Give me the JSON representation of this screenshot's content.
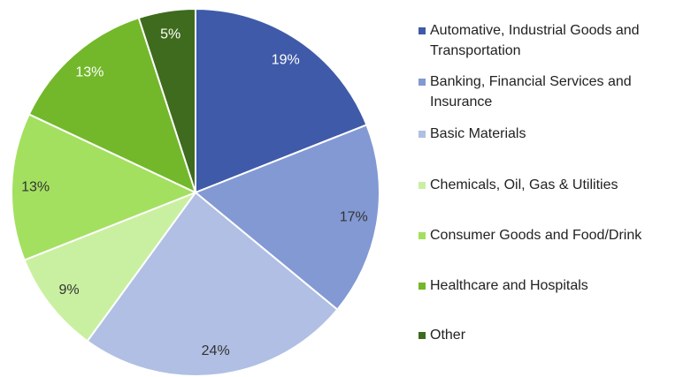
{
  "chart_data": {
    "type": "pie",
    "categories": [
      "Automative, Industrial Goods and Transportation",
      "Banking, Financial Services and Insurance",
      "Basic Materials",
      "Chemicals, Oil, Gas & Utilities",
      "Consumer Goods and Food/Drink",
      "Healthcare and Hospitals",
      "Other"
    ],
    "values": [
      19,
      17,
      24,
      9,
      13,
      13,
      5
    ],
    "value_labels": [
      "19%",
      "17%",
      "24%",
      "9%",
      "13%",
      "13%",
      "5%"
    ],
    "colors": [
      "#3f5aa8",
      "#8399d4",
      "#b0bfe3",
      "#c9f0a0",
      "#a3e060",
      "#72b82a",
      "#3e6b1d"
    ],
    "legend": "right"
  }
}
